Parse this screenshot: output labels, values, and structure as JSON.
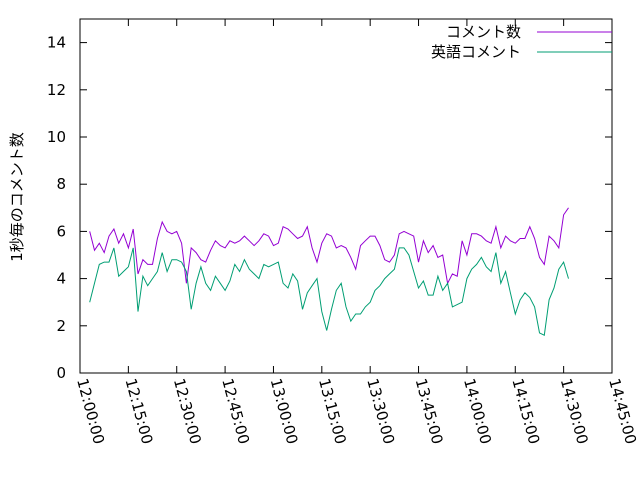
{
  "chart_data": {
    "type": "line",
    "ylabel": "1秒毎のコメント数",
    "xlabel": "",
    "title": "",
    "ylim": [
      0,
      15
    ],
    "yticks": [
      0,
      2,
      4,
      6,
      8,
      10,
      12,
      14
    ],
    "xlim": [
      "12:00:00",
      "14:45:00"
    ],
    "xticks": [
      "12:00:00",
      "12:15:00",
      "12:30:00",
      "12:45:00",
      "13:00:00",
      "13:15:00",
      "13:30:00",
      "13:45:00",
      "14:00:00",
      "14:15:00",
      "14:30:00",
      "14:45:00"
    ],
    "grid": false,
    "legend_position": "top-right",
    "time_step_minutes": 1.5,
    "x_start": "12:03:00",
    "series": [
      {
        "name": "コメント数",
        "color": "#9400d3",
        "values": [
          6.0,
          5.2,
          5.5,
          5.1,
          5.8,
          6.1,
          5.5,
          5.9,
          5.3,
          6.1,
          4.2,
          4.8,
          4.6,
          4.6,
          5.7,
          6.4,
          6.0,
          5.9,
          6.0,
          5.5,
          3.8,
          5.3,
          5.1,
          4.8,
          4.7,
          5.2,
          5.6,
          5.4,
          5.3,
          5.6,
          5.5,
          5.6,
          5.8,
          5.6,
          5.4,
          5.6,
          5.9,
          5.8,
          5.4,
          5.5,
          6.2,
          6.1,
          5.9,
          5.7,
          5.8,
          6.2,
          5.3,
          4.7,
          5.5,
          5.9,
          5.8,
          5.3,
          5.4,
          5.3,
          4.9,
          4.4,
          5.4,
          5.6,
          5.8,
          5.8,
          5.4,
          4.8,
          4.7,
          5.0,
          5.9,
          6.0,
          5.9,
          5.8,
          4.7,
          5.6,
          5.1,
          5.4,
          4.9,
          5.0,
          3.8,
          4.2,
          4.1,
          5.6,
          5.0,
          5.9,
          5.9,
          5.8,
          5.6,
          5.5,
          6.2,
          5.3,
          5.8,
          5.6,
          5.5,
          5.7,
          5.7,
          6.2,
          5.7,
          4.9,
          4.6,
          5.8,
          5.6,
          5.3,
          6.7,
          7.0
        ]
      },
      {
        "name": "英語コメント",
        "color": "#009e73",
        "values": [
          3.0,
          3.8,
          4.6,
          4.7,
          4.7,
          5.3,
          4.1,
          4.3,
          4.5,
          5.3,
          2.6,
          4.1,
          3.7,
          4.0,
          4.3,
          5.1,
          4.3,
          4.8,
          4.8,
          4.7,
          4.3,
          2.7,
          3.8,
          4.5,
          3.8,
          3.5,
          4.1,
          3.8,
          3.5,
          3.9,
          4.6,
          4.3,
          4.8,
          4.4,
          4.2,
          4.0,
          4.6,
          4.5,
          4.6,
          4.7,
          3.8,
          3.6,
          4.2,
          3.9,
          2.7,
          3.4,
          3.7,
          4.0,
          2.6,
          1.8,
          2.7,
          3.5,
          3.8,
          2.8,
          2.2,
          2.5,
          2.5,
          2.8,
          3.0,
          3.5,
          3.7,
          4.0,
          4.2,
          4.4,
          5.3,
          5.3,
          5.0,
          4.3,
          3.6,
          3.9,
          3.3,
          3.3,
          4.1,
          3.5,
          3.8,
          2.8,
          2.9,
          3.0,
          4.0,
          4.4,
          4.6,
          4.9,
          4.5,
          4.3,
          5.1,
          3.8,
          4.3,
          3.4,
          2.5,
          3.1,
          3.4,
          3.2,
          2.8,
          1.7,
          1.6,
          3.1,
          3.6,
          4.4,
          4.7,
          4.0
        ]
      }
    ]
  }
}
